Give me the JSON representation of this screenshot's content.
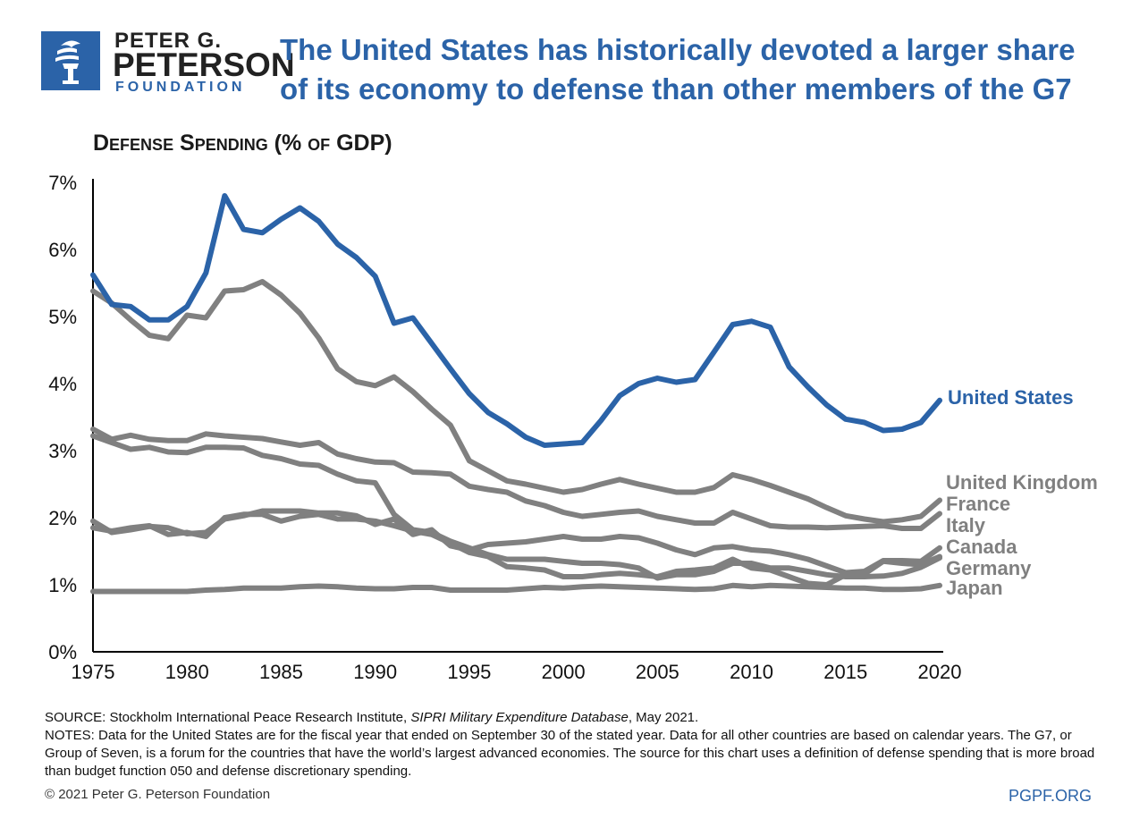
{
  "brand": {
    "line1": "PETER G.",
    "line2": "PETERSON",
    "line3": "FOUNDATION",
    "accent_color": "#2b63a8",
    "logo_icon": "torch-icon"
  },
  "header": {
    "title": "The United States has historically devoted a larger share of its economy to defense than other members of the G7"
  },
  "chart_data": {
    "type": "line",
    "title": "The United States has historically devoted a larger share of its economy to defense than other members of the G7",
    "subtitle": "Defense Spending (% of GDP)",
    "xlabel": "",
    "ylabel": "",
    "xlim": [
      1975,
      2020
    ],
    "ylim": [
      0,
      7
    ],
    "x_ticks": [
      "1975",
      "1980",
      "1985",
      "1990",
      "1995",
      "2000",
      "2005",
      "2010",
      "2015",
      "2020"
    ],
    "y_ticks": [
      "0%",
      "1%",
      "2%",
      "3%",
      "4%",
      "5%",
      "6%",
      "7%"
    ],
    "grid": false,
    "x": [
      1975,
      1976,
      1977,
      1978,
      1979,
      1980,
      1981,
      1982,
      1983,
      1984,
      1985,
      1986,
      1987,
      1988,
      1989,
      1990,
      1991,
      1992,
      1993,
      1994,
      1995,
      1996,
      1997,
      1998,
      1999,
      2000,
      2001,
      2002,
      2003,
      2004,
      2005,
      2006,
      2007,
      2008,
      2009,
      2010,
      2011,
      2012,
      2013,
      2014,
      2015,
      2016,
      2017,
      2018,
      2019,
      2020
    ],
    "series": [
      {
        "name": "United States",
        "color": "#2b63a8",
        "values": [
          5.62,
          5.18,
          5.15,
          4.95,
          4.95,
          5.15,
          5.65,
          6.8,
          6.3,
          6.25,
          6.45,
          6.62,
          6.42,
          6.08,
          5.88,
          5.6,
          4.9,
          4.98,
          4.6,
          4.22,
          3.85,
          3.57,
          3.4,
          3.2,
          3.08,
          3.1,
          3.12,
          3.45,
          3.82,
          4.0,
          4.08,
          4.02,
          4.06,
          4.47,
          4.88,
          4.93,
          4.84,
          4.25,
          3.95,
          3.68,
          3.47,
          3.42,
          3.3,
          3.32,
          3.42,
          3.75
        ]
      },
      {
        "name": "United Kingdom",
        "color": "#808080",
        "values": [
          5.38,
          5.2,
          4.95,
          4.72,
          4.67,
          5.02,
          4.98,
          5.38,
          5.4,
          5.52,
          5.32,
          5.05,
          4.68,
          4.22,
          4.03,
          3.97,
          4.1,
          3.88,
          3.62,
          3.38,
          2.85,
          2.7,
          2.55,
          2.5,
          2.44,
          2.38,
          2.42,
          2.5,
          2.57,
          2.5,
          2.44,
          2.38,
          2.38,
          2.45,
          2.64,
          2.57,
          2.48,
          2.38,
          2.28,
          2.15,
          2.03,
          1.98,
          1.94,
          1.97,
          2.02,
          2.26
        ]
      },
      {
        "name": "France",
        "color": "#808080",
        "values": [
          3.32,
          3.17,
          3.23,
          3.17,
          3.15,
          3.15,
          3.25,
          3.22,
          3.2,
          3.18,
          3.13,
          3.08,
          3.12,
          2.95,
          2.88,
          2.83,
          2.82,
          2.68,
          2.67,
          2.65,
          2.47,
          2.42,
          2.38,
          2.25,
          2.18,
          2.08,
          2.02,
          2.05,
          2.08,
          2.1,
          2.02,
          1.97,
          1.92,
          1.92,
          2.08,
          1.98,
          1.88,
          1.86,
          1.86,
          1.85,
          1.86,
          1.87,
          1.88,
          1.84,
          1.84,
          2.06
        ]
      },
      {
        "name": "Italy",
        "color": "#808080",
        "values": [
          1.95,
          1.78,
          1.82,
          1.87,
          1.85,
          1.76,
          1.78,
          1.98,
          2.03,
          2.1,
          2.1,
          2.1,
          2.07,
          2.07,
          2.03,
          1.9,
          1.98,
          1.75,
          1.82,
          1.58,
          1.52,
          1.6,
          1.62,
          1.64,
          1.68,
          1.72,
          1.68,
          1.68,
          1.72,
          1.7,
          1.62,
          1.52,
          1.45,
          1.55,
          1.57,
          1.52,
          1.5,
          1.45,
          1.38,
          1.28,
          1.18,
          1.2,
          1.36,
          1.36,
          1.35,
          1.55
        ]
      },
      {
        "name": "Canada",
        "color": "#808080",
        "values": [
          1.85,
          1.8,
          1.85,
          1.88,
          1.75,
          1.78,
          1.72,
          2.0,
          2.05,
          2.05,
          1.95,
          2.02,
          2.05,
          1.98,
          1.98,
          1.95,
          1.88,
          1.8,
          1.75,
          1.62,
          1.48,
          1.42,
          1.27,
          1.25,
          1.22,
          1.12,
          1.12,
          1.15,
          1.17,
          1.15,
          1.12,
          1.2,
          1.22,
          1.25,
          1.38,
          1.25,
          1.22,
          1.12,
          1.02,
          1.0,
          1.15,
          1.16,
          1.35,
          1.32,
          1.3,
          1.42
        ]
      },
      {
        "name": "Germany",
        "color": "#808080",
        "values": [
          3.22,
          3.12,
          3.02,
          3.05,
          2.98,
          2.97,
          3.05,
          3.05,
          3.04,
          2.93,
          2.88,
          2.8,
          2.78,
          2.65,
          2.55,
          2.52,
          2.05,
          1.82,
          1.78,
          1.65,
          1.55,
          1.45,
          1.38,
          1.38,
          1.38,
          1.35,
          1.32,
          1.32,
          1.3,
          1.25,
          1.1,
          1.15,
          1.15,
          1.2,
          1.32,
          1.32,
          1.25,
          1.25,
          1.2,
          1.15,
          1.12,
          1.12,
          1.13,
          1.17,
          1.26,
          1.4
        ]
      },
      {
        "name": "Japan",
        "color": "#808080",
        "values": [
          0.9,
          0.9,
          0.9,
          0.9,
          0.9,
          0.9,
          0.92,
          0.93,
          0.95,
          0.95,
          0.95,
          0.97,
          0.98,
          0.97,
          0.95,
          0.94,
          0.94,
          0.96,
          0.96,
          0.92,
          0.92,
          0.92,
          0.92,
          0.94,
          0.96,
          0.95,
          0.97,
          0.98,
          0.97,
          0.96,
          0.95,
          0.94,
          0.93,
          0.94,
          0.99,
          0.97,
          0.99,
          0.98,
          0.97,
          0.96,
          0.95,
          0.95,
          0.93,
          0.93,
          0.94,
          0.99
        ]
      }
    ]
  },
  "footer": {
    "source_prefix": "SOURCE: Stockholm International Peace Research Institute, ",
    "source_italic": "SIPRI Military Expenditure Database",
    "source_suffix": ", May 2021.",
    "notes": "NOTES: Data for the United States are for the fiscal year that ended on September 30 of the stated year. Data for all other countries are based on calendar years. The G7, or Group of Seven, is a forum for the countries that have the world’s largest advanced economies. The source for this chart uses a definition of defense spending that is more broad than budget function 050 and defense discretionary spending.",
    "copyright": "© 2021 Peter G. Peterson Foundation",
    "site": "PGPF.ORG"
  }
}
